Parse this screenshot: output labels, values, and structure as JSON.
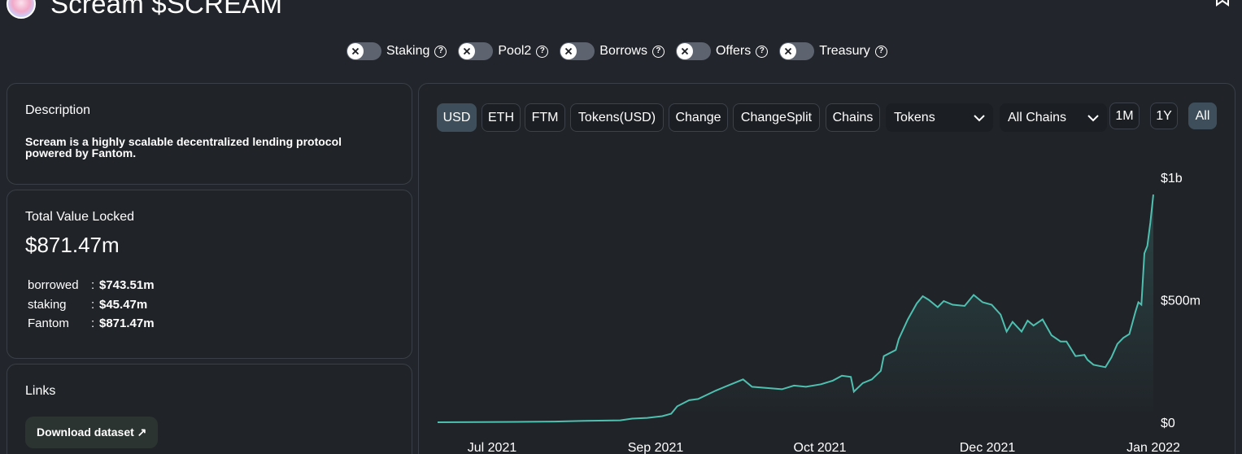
{
  "header": {
    "title": "Scream $SCREAM",
    "logo_icon": "scream-logo",
    "bookmark_icon": "bookmark-icon"
  },
  "toggles": [
    {
      "label": "Staking",
      "on": false
    },
    {
      "label": "Pool2",
      "on": false
    },
    {
      "label": "Borrows",
      "on": false
    },
    {
      "label": "Offers",
      "on": false
    },
    {
      "label": "Treasury",
      "on": false
    }
  ],
  "description": {
    "heading": "Description",
    "text": "Scream is a highly scalable decentralized lending protocol powered by Fantom."
  },
  "tvl": {
    "heading": "Total Value Locked",
    "value": "$871.47m",
    "breakdown": [
      {
        "key": "borrowed",
        "sep": ":",
        "value": "$743.51m"
      },
      {
        "key": "staking",
        "sep": ":",
        "value": "$45.47m"
      },
      {
        "key": "Fantom",
        "sep": ":",
        "value": "$871.47m"
      }
    ]
  },
  "links": {
    "heading": "Links",
    "download_label": "Download dataset ↗"
  },
  "chart_controls": {
    "buttons": [
      "USD",
      "ETH",
      "FTM",
      "Tokens(USD)",
      "Change",
      "ChangeSplit",
      "Chains"
    ],
    "active": "USD",
    "tokens_select": "Tokens",
    "chains_select": "All Chains",
    "ranges": [
      "1M",
      "1Y",
      "All"
    ],
    "active_range": "All"
  },
  "colors": {
    "line": "#4fbfb0",
    "active_button": "#3e4f5b",
    "background": "#22252b"
  },
  "chart_data": {
    "type": "area",
    "title": "",
    "xlabel": "",
    "ylabel": "",
    "x_ticks": [
      "Jul 2021",
      "Sep 2021",
      "Oct 2021",
      "Dec 2021",
      "Jan 2022"
    ],
    "y_ticks": [
      "$0",
      "$500m",
      "$1b"
    ],
    "ylim": [
      0,
      1000
    ],
    "y_unit": "$m",
    "series": [
      {
        "values": [
          [
            "2021-06-01",
            0
          ],
          [
            "2021-06-15",
            1
          ],
          [
            "2021-07-01",
            2
          ],
          [
            "2021-07-10",
            3
          ],
          [
            "2021-07-20",
            6
          ],
          [
            "2021-08-01",
            8
          ],
          [
            "2021-08-05",
            15
          ],
          [
            "2021-08-10",
            18
          ],
          [
            "2021-08-15",
            25
          ],
          [
            "2021-08-18",
            35
          ],
          [
            "2021-08-20",
            65
          ],
          [
            "2021-08-24",
            90
          ],
          [
            "2021-08-27",
            95
          ],
          [
            "2021-09-02",
            130
          ],
          [
            "2021-09-07",
            155
          ],
          [
            "2021-09-11",
            175
          ],
          [
            "2021-09-14",
            145
          ],
          [
            "2021-09-19",
            140
          ],
          [
            "2021-09-24",
            135
          ],
          [
            "2021-09-28",
            150
          ],
          [
            "2021-10-02",
            145
          ],
          [
            "2021-10-07",
            155
          ],
          [
            "2021-10-11",
            170
          ],
          [
            "2021-10-14",
            190
          ],
          [
            "2021-10-17",
            185
          ],
          [
            "2021-10-18",
            125
          ],
          [
            "2021-10-21",
            160
          ],
          [
            "2021-10-24",
            175
          ],
          [
            "2021-10-27",
            210
          ],
          [
            "2021-10-28",
            270
          ],
          [
            "2021-11-01",
            295
          ],
          [
            "2021-11-02",
            340
          ],
          [
            "2021-11-05",
            420
          ],
          [
            "2021-11-08",
            485
          ],
          [
            "2021-11-10",
            515
          ],
          [
            "2021-11-12",
            500
          ],
          [
            "2021-11-15",
            470
          ],
          [
            "2021-11-17",
            495
          ],
          [
            "2021-11-20",
            480
          ],
          [
            "2021-11-24",
            475
          ],
          [
            "2021-11-27",
            520
          ],
          [
            "2021-11-30",
            490
          ],
          [
            "2021-12-03",
            480
          ],
          [
            "2021-12-06",
            440
          ],
          [
            "2021-12-08",
            370
          ],
          [
            "2021-12-10",
            410
          ],
          [
            "2021-12-13",
            370
          ],
          [
            "2021-12-15",
            415
          ],
          [
            "2021-12-17",
            395
          ],
          [
            "2021-12-20",
            420
          ],
          [
            "2021-12-23",
            355
          ],
          [
            "2021-12-26",
            330
          ],
          [
            "2021-12-28",
            330
          ],
          [
            "2021-12-31",
            270
          ],
          [
            "2022-01-03",
            275
          ],
          [
            "2022-01-04",
            255
          ],
          [
            "2022-01-06",
            235
          ],
          [
            "2022-01-10",
            225
          ],
          [
            "2022-01-12",
            265
          ],
          [
            "2022-01-14",
            320
          ],
          [
            "2022-01-16",
            345
          ],
          [
            "2022-01-18",
            360
          ],
          [
            "2022-01-20",
            450
          ],
          [
            "2022-01-21",
            490
          ],
          [
            "2022-01-22",
            480
          ],
          [
            "2022-01-23",
            690
          ],
          [
            "2022-01-24",
            720
          ],
          [
            "2022-01-25",
            815
          ],
          [
            "2022-01-26",
            930
          ]
        ]
      }
    ],
    "grid": false,
    "legend": "none"
  }
}
